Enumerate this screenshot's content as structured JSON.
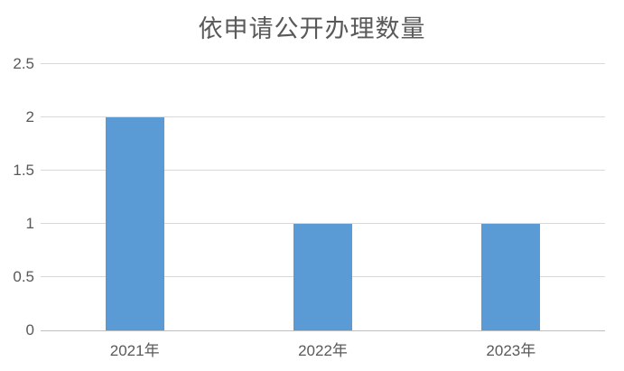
{
  "chart_data": {
    "type": "bar",
    "title": "依申请公开办理数量",
    "categories": [
      "2021年",
      "2022年",
      "2023年"
    ],
    "values": [
      2,
      1,
      1
    ],
    "xlabel": "",
    "ylabel": "",
    "ylim": [
      0,
      2.5
    ],
    "ytick_step": 0.5,
    "ytick_labels": [
      "0",
      "0.5",
      "1",
      "1.5",
      "2",
      "2.5"
    ],
    "grid": true,
    "legend_position": "none",
    "colors": {
      "bar": "#5b9bd5",
      "gridline": "#d9d9d9",
      "axis_line": "#bfbfbf",
      "tick_text": "#595959",
      "title_text": "#595959"
    }
  }
}
